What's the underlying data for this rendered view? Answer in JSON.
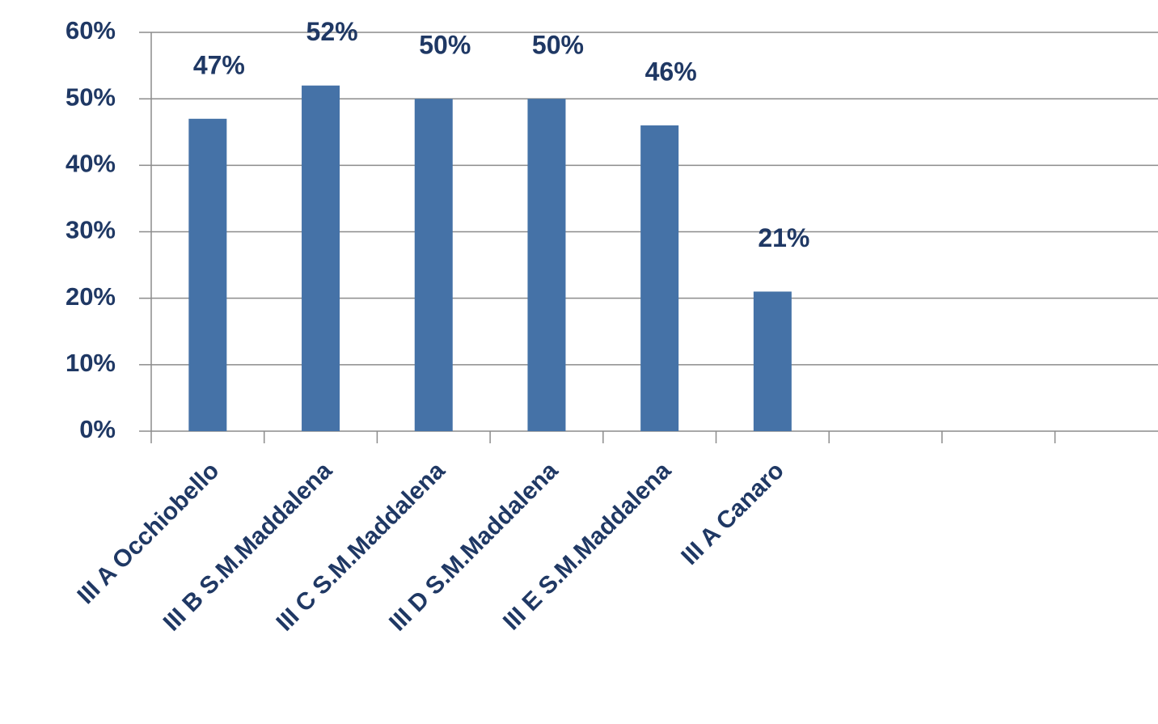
{
  "chart_data": {
    "type": "bar",
    "categories": [
      "III A  Occhiobello",
      "III B  S.M.Maddalena",
      "III C  S.M.Maddalena",
      "III D  S.M.Maddalena",
      "III E  S.M.Maddalena",
      "III A   Canaro",
      null,
      null,
      null
    ],
    "values": [
      47,
      52,
      50,
      50,
      46,
      21,
      null,
      null,
      null
    ],
    "value_labels": [
      "47%",
      "52%",
      "50%",
      "50%",
      "46%",
      "21%",
      null,
      null,
      null
    ],
    "color": "#4572a7",
    "ylim": [
      0,
      60
    ],
    "yticks": [
      {
        "value": 0,
        "label": "0%"
      },
      {
        "value": 10,
        "label": "10%"
      },
      {
        "value": 20,
        "label": "20%"
      },
      {
        "value": 30,
        "label": "30%"
      },
      {
        "value": 40,
        "label": "40%"
      },
      {
        "value": 50,
        "label": "50%"
      },
      {
        "value": 60,
        "label": "60%"
      }
    ],
    "grid": true
  }
}
